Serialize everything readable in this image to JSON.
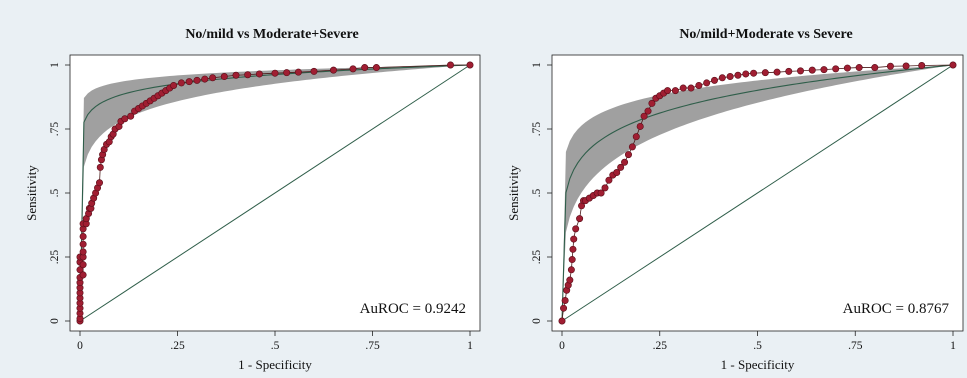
{
  "chart_data": [
    {
      "type": "scatter",
      "title": "No/mild vs Moderate+Severe",
      "xlabel": "1 - Specificity",
      "ylabel": "Sensitivity",
      "xlim": [
        0,
        1
      ],
      "ylim": [
        0,
        1
      ],
      "x_ticks": [
        0,
        0.25,
        0.5,
        0.75,
        1
      ],
      "x_tick_labels": [
        "0",
        ".25",
        ".5",
        ".75",
        "1"
      ],
      "y_ticks": [
        0,
        0.25,
        0.5,
        0.75,
        1
      ],
      "y_tick_labels": [
        "0",
        ".25",
        ".5",
        ".75",
        "1"
      ],
      "annotation": "AuROC = 0.9242",
      "grid": false,
      "colors": {
        "points": "#a01e32",
        "band": "#8f8f8f",
        "fit": "#2f5e4a",
        "diagonal": "#2f5e4a"
      },
      "fit_curve_power": 0.055,
      "band_powers": [
        0.03,
        0.11
      ],
      "reference_line": [
        [
          0,
          0
        ],
        [
          1,
          1
        ]
      ],
      "points": [
        [
          0,
          0
        ],
        [
          0,
          0.01
        ],
        [
          0,
          0.03
        ],
        [
          0,
          0.05
        ],
        [
          0,
          0.07
        ],
        [
          0,
          0.09
        ],
        [
          0,
          0.11
        ],
        [
          0,
          0.13
        ],
        [
          0,
          0.15
        ],
        [
          0,
          0.17
        ],
        [
          0,
          0.2
        ],
        [
          0,
          0.23
        ],
        [
          0,
          0.25
        ],
        [
          0.008,
          0.18
        ],
        [
          0.008,
          0.22
        ],
        [
          0.008,
          0.25
        ],
        [
          0.008,
          0.27
        ],
        [
          0.008,
          0.3
        ],
        [
          0.008,
          0.33
        ],
        [
          0.008,
          0.36
        ],
        [
          0.008,
          0.38
        ],
        [
          0.016,
          0.38
        ],
        [
          0.016,
          0.4
        ],
        [
          0.022,
          0.42
        ],
        [
          0.024,
          0.44
        ],
        [
          0.028,
          0.44
        ],
        [
          0.03,
          0.46
        ],
        [
          0.035,
          0.48
        ],
        [
          0.04,
          0.5
        ],
        [
          0.045,
          0.52
        ],
        [
          0.05,
          0.54
        ],
        [
          0.052,
          0.6
        ],
        [
          0.055,
          0.63
        ],
        [
          0.058,
          0.65
        ],
        [
          0.062,
          0.67
        ],
        [
          0.068,
          0.69
        ],
        [
          0.075,
          0.7
        ],
        [
          0.08,
          0.72
        ],
        [
          0.085,
          0.73
        ],
        [
          0.09,
          0.75
        ],
        [
          0.1,
          0.76
        ],
        [
          0.105,
          0.78
        ],
        [
          0.115,
          0.79
        ],
        [
          0.13,
          0.8
        ],
        [
          0.14,
          0.82
        ],
        [
          0.15,
          0.83
        ],
        [
          0.16,
          0.84
        ],
        [
          0.17,
          0.85
        ],
        [
          0.18,
          0.86
        ],
        [
          0.19,
          0.87
        ],
        [
          0.2,
          0.88
        ],
        [
          0.21,
          0.89
        ],
        [
          0.22,
          0.9
        ],
        [
          0.23,
          0.91
        ],
        [
          0.24,
          0.92
        ],
        [
          0.26,
          0.93
        ],
        [
          0.28,
          0.935
        ],
        [
          0.3,
          0.94
        ],
        [
          0.32,
          0.945
        ],
        [
          0.34,
          0.95
        ],
        [
          0.37,
          0.955
        ],
        [
          0.4,
          0.96
        ],
        [
          0.43,
          0.962
        ],
        [
          0.46,
          0.965
        ],
        [
          0.5,
          0.968
        ],
        [
          0.53,
          0.97
        ],
        [
          0.56,
          0.972
        ],
        [
          0.6,
          0.975
        ],
        [
          0.65,
          0.98
        ],
        [
          0.7,
          0.985
        ],
        [
          0.73,
          0.99
        ],
        [
          0.76,
          0.99
        ],
        [
          0.95,
          1
        ],
        [
          1,
          1
        ]
      ]
    },
    {
      "type": "scatter",
      "title": "No/mild+Moderate vs Severe",
      "xlabel": "1 - Specificity",
      "ylabel": "Sensitivity",
      "xlim": [
        0,
        1
      ],
      "ylim": [
        0,
        1
      ],
      "x_ticks": [
        0,
        0.25,
        0.5,
        0.75,
        1
      ],
      "x_tick_labels": [
        "0",
        ".25",
        ".5",
        ".75",
        "1"
      ],
      "y_ticks": [
        0,
        0.25,
        0.5,
        0.75,
        1
      ],
      "y_tick_labels": [
        "0",
        ".25",
        ".5",
        ".75",
        "1"
      ],
      "annotation": "AuROC = 0.8767",
      "grid": false,
      "colors": {
        "points": "#a01e32",
        "band": "#8f8f8f",
        "fit": "#2f5e4a",
        "diagonal": "#2f5e4a"
      },
      "fit_curve_power": 0.15,
      "band_powers": [
        0.09,
        0.23
      ],
      "reference_line": [
        [
          0,
          0
        ],
        [
          1,
          1
        ]
      ],
      "points": [
        [
          0,
          0
        ],
        [
          0.004,
          0.05
        ],
        [
          0.008,
          0.08
        ],
        [
          0.012,
          0.12
        ],
        [
          0.016,
          0.14
        ],
        [
          0.02,
          0.16
        ],
        [
          0.024,
          0.2
        ],
        [
          0.026,
          0.24
        ],
        [
          0.028,
          0.28
        ],
        [
          0.03,
          0.32
        ],
        [
          0.035,
          0.36
        ],
        [
          0.045,
          0.4
        ],
        [
          0.05,
          0.45
        ],
        [
          0.055,
          0.47
        ],
        [
          0.06,
          0.47
        ],
        [
          0.07,
          0.48
        ],
        [
          0.08,
          0.49
        ],
        [
          0.09,
          0.5
        ],
        [
          0.1,
          0.5
        ],
        [
          0.11,
          0.52
        ],
        [
          0.12,
          0.55
        ],
        [
          0.13,
          0.57
        ],
        [
          0.14,
          0.58
        ],
        [
          0.15,
          0.6
        ],
        [
          0.16,
          0.62
        ],
        [
          0.17,
          0.65
        ],
        [
          0.18,
          0.68
        ],
        [
          0.19,
          0.72
        ],
        [
          0.2,
          0.76
        ],
        [
          0.21,
          0.8
        ],
        [
          0.22,
          0.82
        ],
        [
          0.23,
          0.85
        ],
        [
          0.24,
          0.87
        ],
        [
          0.25,
          0.88
        ],
        [
          0.26,
          0.89
        ],
        [
          0.27,
          0.9
        ],
        [
          0.29,
          0.9
        ],
        [
          0.31,
          0.91
        ],
        [
          0.33,
          0.91
        ],
        [
          0.35,
          0.92
        ],
        [
          0.37,
          0.93
        ],
        [
          0.39,
          0.94
        ],
        [
          0.41,
          0.95
        ],
        [
          0.43,
          0.955
        ],
        [
          0.45,
          0.96
        ],
        [
          0.47,
          0.965
        ],
        [
          0.49,
          0.968
        ],
        [
          0.52,
          0.97
        ],
        [
          0.55,
          0.972
        ],
        [
          0.58,
          0.975
        ],
        [
          0.61,
          0.977
        ],
        [
          0.64,
          0.98
        ],
        [
          0.67,
          0.982
        ],
        [
          0.7,
          0.985
        ],
        [
          0.73,
          0.988
        ],
        [
          0.76,
          0.99
        ],
        [
          0.8,
          0.99
        ],
        [
          0.84,
          0.995
        ],
        [
          0.88,
          0.996
        ],
        [
          0.92,
          0.998
        ],
        [
          1,
          1
        ]
      ]
    }
  ]
}
